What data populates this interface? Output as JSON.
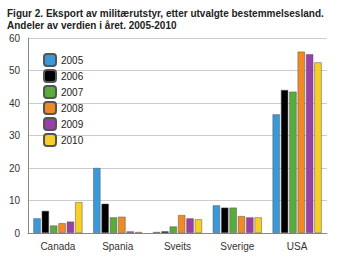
{
  "chart_data": {
    "type": "bar",
    "title": "Figur 2. Eksport av militærutstyr, etter utvalgte bestemmelsesland. Andeler av verdien i året. 2005-2010",
    "categories": [
      "Canada",
      "Spania",
      "Sveits",
      "Sverige",
      "USA"
    ],
    "series": [
      {
        "name": "2005",
        "color": "#3a9ad9",
        "values": [
          4.5,
          20,
          0.3,
          8.5,
          36.5
        ]
      },
      {
        "name": "2006",
        "color": "#000000",
        "values": [
          6.8,
          9,
          0.5,
          7.8,
          44
        ]
      },
      {
        "name": "2007",
        "color": "#5aaa3c",
        "values": [
          2.3,
          4.8,
          2,
          7.8,
          43.5
        ]
      },
      {
        "name": "2008",
        "color": "#f08a24",
        "values": [
          3,
          5,
          5.5,
          5.2,
          55.8
        ]
      },
      {
        "name": "2009",
        "color": "#9b3fa8",
        "values": [
          3.5,
          0.5,
          4.5,
          4.8,
          55
        ]
      },
      {
        "name": "2010",
        "color": "#f8cf27",
        "values": [
          9.5,
          0.3,
          4.2,
          4.8,
          52.5
        ]
      }
    ],
    "ylim": [
      0,
      60
    ],
    "yticks": [
      0,
      10,
      20,
      30,
      40,
      50,
      60
    ],
    "grid": true,
    "legend": "top-left"
  }
}
